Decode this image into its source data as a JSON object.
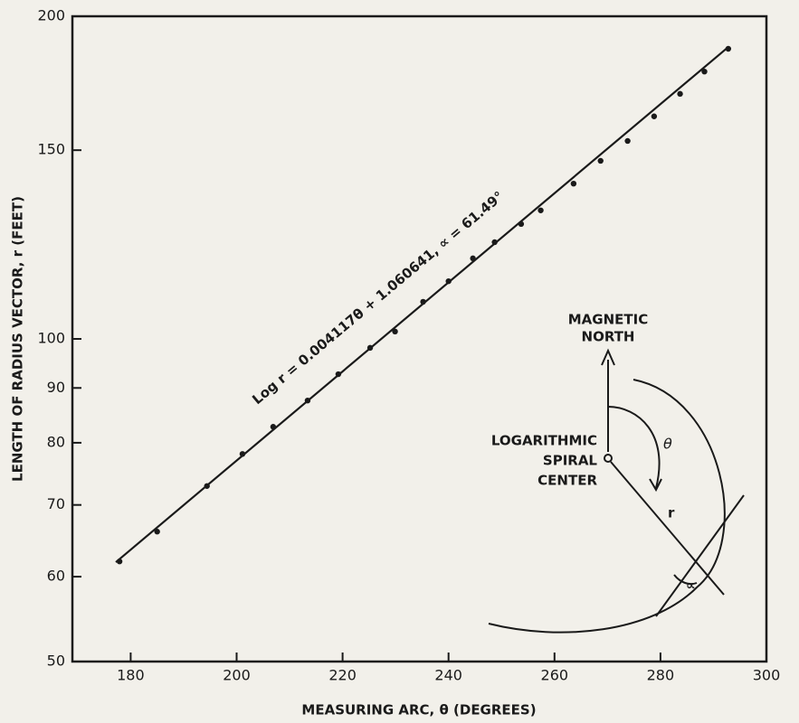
{
  "chart_data": {
    "type": "scatter",
    "x_label": "MEASURING ARC, θ (DEGREES)",
    "y_label": "LENGTH OF RADIUS VECTOR, r (FEET)",
    "xlim": [
      169,
      300
    ],
    "xticks": [
      180,
      200,
      220,
      240,
      260,
      280,
      300
    ],
    "ylim": [
      50,
      200
    ],
    "yticks": [
      50,
      60,
      70,
      80,
      90,
      100,
      150,
      200
    ],
    "y_scale": "log",
    "series": [
      {
        "mode": "markers",
        "color": "#1a1a1a",
        "x": [
          177.9,
          185.0,
          194.4,
          201.1,
          206.9,
          213.4,
          219.2,
          225.2,
          229.9,
          235.2,
          240.0,
          244.6,
          248.7,
          253.7,
          257.4,
          263.6,
          268.7,
          273.8,
          278.8,
          283.7,
          288.3,
          292.8
        ],
        "values": [
          62.0,
          66.1,
          72.9,
          78.1,
          82.8,
          87.6,
          92.7,
          98.1,
          101.6,
          108.3,
          113.2,
          118.9,
          123.1,
          128.0,
          131.8,
          139.6,
          146.6,
          153.0,
          161.3,
          169.3,
          177.6,
          186.5
        ]
      },
      {
        "mode": "line",
        "color": "#1a1a1a",
        "x": [
          177.2,
          292.8
        ],
        "values": [
          61.9,
          187.2
        ]
      }
    ],
    "annotations": {
      "equation": "Log r = 0.004117θ + 1.060641, ∝ = 61.49°",
      "north": [
        "MAGNETIC",
        "NORTH"
      ],
      "center": [
        "LOGARITHMIC",
        "SPIRAL",
        "CENTER"
      ],
      "theta": "θ",
      "r": "r",
      "alpha": "∝"
    }
  }
}
